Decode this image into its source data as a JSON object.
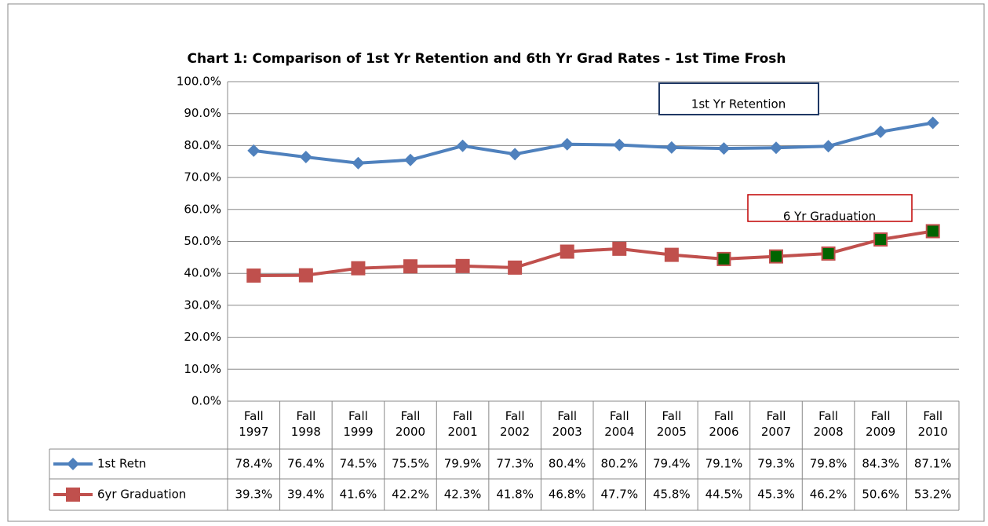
{
  "chart_data": {
    "type": "line",
    "title": "Chart 1: Comparison of 1st Yr Retention and 6th Yr Grad Rates - 1st Time Frosh",
    "categories": [
      "Fall 1997",
      "Fall 1998",
      "Fall 1999",
      "Fall 2000",
      "Fall 2001",
      "Fall 2002",
      "Fall 2003",
      "Fall 2004",
      "Fall 2005",
      "Fall 2006",
      "Fall 2007",
      "Fall 2008",
      "Fall 2009",
      "Fall 2010"
    ],
    "series": [
      {
        "name": "1st Retn",
        "color": "#4f81bd",
        "marker": "diamond",
        "values": [
          78.4,
          76.4,
          74.5,
          75.5,
          79.9,
          77.3,
          80.4,
          80.2,
          79.4,
          79.1,
          79.3,
          79.8,
          84.3,
          87.1
        ],
        "value_labels": [
          "78.4%",
          "76.4%",
          "74.5%",
          "75.5%",
          "79.9%",
          "77.3%",
          "80.4%",
          "80.2%",
          "79.4%",
          "79.1%",
          "79.3%",
          "79.8%",
          "84.3%",
          "87.1%"
        ]
      },
      {
        "name": "6yr Graduation",
        "color": "#c0504d",
        "marker": "square",
        "marker_fill": [
          "#c0504d",
          "#c0504d",
          "#c0504d",
          "#c0504d",
          "#c0504d",
          "#c0504d",
          "#c0504d",
          "#c0504d",
          "#c0504d",
          "#006400",
          "#006400",
          "#006400",
          "#006400",
          "#006400"
        ],
        "values": [
          39.3,
          39.4,
          41.6,
          42.2,
          42.3,
          41.8,
          46.8,
          47.7,
          45.8,
          44.5,
          45.3,
          46.2,
          50.6,
          53.2
        ],
        "value_labels": [
          "39.3%",
          "39.4%",
          "41.6%",
          "42.2%",
          "42.3%",
          "41.8%",
          "46.8%",
          "47.7%",
          "45.8%",
          "44.5%",
          "45.3%",
          "46.2%",
          "50.6%",
          "53.2%"
        ]
      }
    ],
    "annotations": [
      "1st  Yr Retention",
      "6 Yr Graduation"
    ],
    "ylim": [
      0,
      100
    ],
    "yticks": [
      {
        "value": 0,
        "label": "0.0%"
      },
      {
        "value": 10,
        "label": "10.0%"
      },
      {
        "value": 20,
        "label": "20.0%"
      },
      {
        "value": 30,
        "label": "30.0%"
      },
      {
        "value": 40,
        "label": "40.0%"
      },
      {
        "value": 50,
        "label": "50.0%"
      },
      {
        "value": 60,
        "label": "60.0%"
      },
      {
        "value": 70,
        "label": "70.0%"
      },
      {
        "value": 80,
        "label": "80.0%"
      },
      {
        "value": 90,
        "label": "90.0%"
      },
      {
        "value": 100,
        "label": "100.0%"
      }
    ],
    "grid": true
  }
}
